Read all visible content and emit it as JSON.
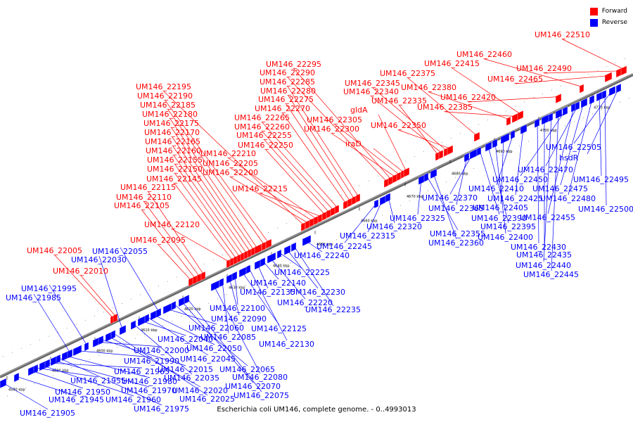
{
  "colors": {
    "forward": "#ff0000",
    "reverse": "#0000ff"
  },
  "legend": [
    {
      "label": "Forward",
      "color": "#ff0000"
    },
    {
      "label": "Reverse",
      "color": "#0000ff"
    }
  ],
  "footer": "Escherichia coli UM146, complete genome. - 0..4993013",
  "ticks": [
    "4580 kbp",
    "4590 kbp",
    "4600 kbp",
    "4610 kbp",
    "4620 kbp",
    "4630 kbp",
    "4640 kbp",
    "4650 kbp",
    "4660 kbp",
    "4670 kbp",
    "4680 kbp",
    "4690 kbp",
    "4700 kbp",
    "4710 kbp"
  ],
  "forward_labels": [
    "UM146_22005",
    "UM146_22010",
    "UM146_22095",
    "UM146_22105",
    "UM146_22110",
    "UM146_22115",
    "UM146_22120",
    "UM146_22145",
    "UM146_22150",
    "UM146_22155",
    "UM146_22160",
    "UM146_22165",
    "UM146_22170",
    "UM146_22175",
    "UM146_22180",
    "UM146_22185",
    "UM146_22190",
    "UM146_22195",
    "UM146_22200",
    "UM146_22205",
    "UM146_22210",
    "UM146_22215",
    "UM146_22250",
    "UM146_22255",
    "UM146_22260",
    "UM146_22265",
    "UM146_22270",
    "UM146_22275",
    "UM146_22280",
    "UM146_22285",
    "UM146_22290",
    "UM146_22295",
    "UM146_22300",
    "UM146_22305",
    "iraD",
    "gldA",
    "UM146_22335",
    "UM146_22340",
    "UM146_22345",
    "UM146_22350",
    "UM146_22375",
    "UM146_22380",
    "UM146_22385",
    "UM146_22415",
    "UM146_22420",
    "UM146_22460",
    "UM146_22465",
    "UM146_22490",
    "UM146_22510"
  ],
  "reverse_labels": [
    "UM146_21905",
    "UM146_21945",
    "UM146_21950",
    "UM146_21955",
    "UM146_21960",
    "UM146_21965",
    "UM146_21970",
    "UM146_21975",
    "UM146_21980",
    "UM146_21985",
    "UM146_21990",
    "UM146_21995",
    "UM146_22000",
    "UM146_22015",
    "UM146_22020",
    "UM146_22025",
    "UM146_22030",
    "UM146_22035",
    "UM146_22040",
    "UM146_22045",
    "UM146_22050",
    "UM146_22055",
    "UM146_22060",
    "UM146_22065",
    "UM146_22070",
    "UM146_22075",
    "UM146_22080",
    "UM146_22085",
    "UM146_22090",
    "UM146_22100",
    "UM146_22125",
    "UM146_22130",
    "UM146_22135",
    "UM146_22140",
    "UM146_22220",
    "UM146_22225",
    "UM146_22230",
    "UM146_22235",
    "UM146_22240",
    "UM146_22245",
    "UM146_22315",
    "UM146_22320",
    "UM146_22325",
    "UM146_22355",
    "UM146_22360",
    "UM146_22365",
    "UM146_22370",
    "UM146_22390",
    "UM146_22395",
    "UM146_22400",
    "UM146_22405",
    "UM146_22410",
    "UM146_22425",
    "UM146_22430",
    "UM146_22435",
    "UM146_22440",
    "UM146_22445",
    "UM146_22450",
    "UM146_22455",
    "UM146_22470",
    "UM146_22475",
    "UM146_22480",
    "UM146_22495",
    "UM146_22500",
    "UM146_22505",
    "hsdR"
  ]
}
